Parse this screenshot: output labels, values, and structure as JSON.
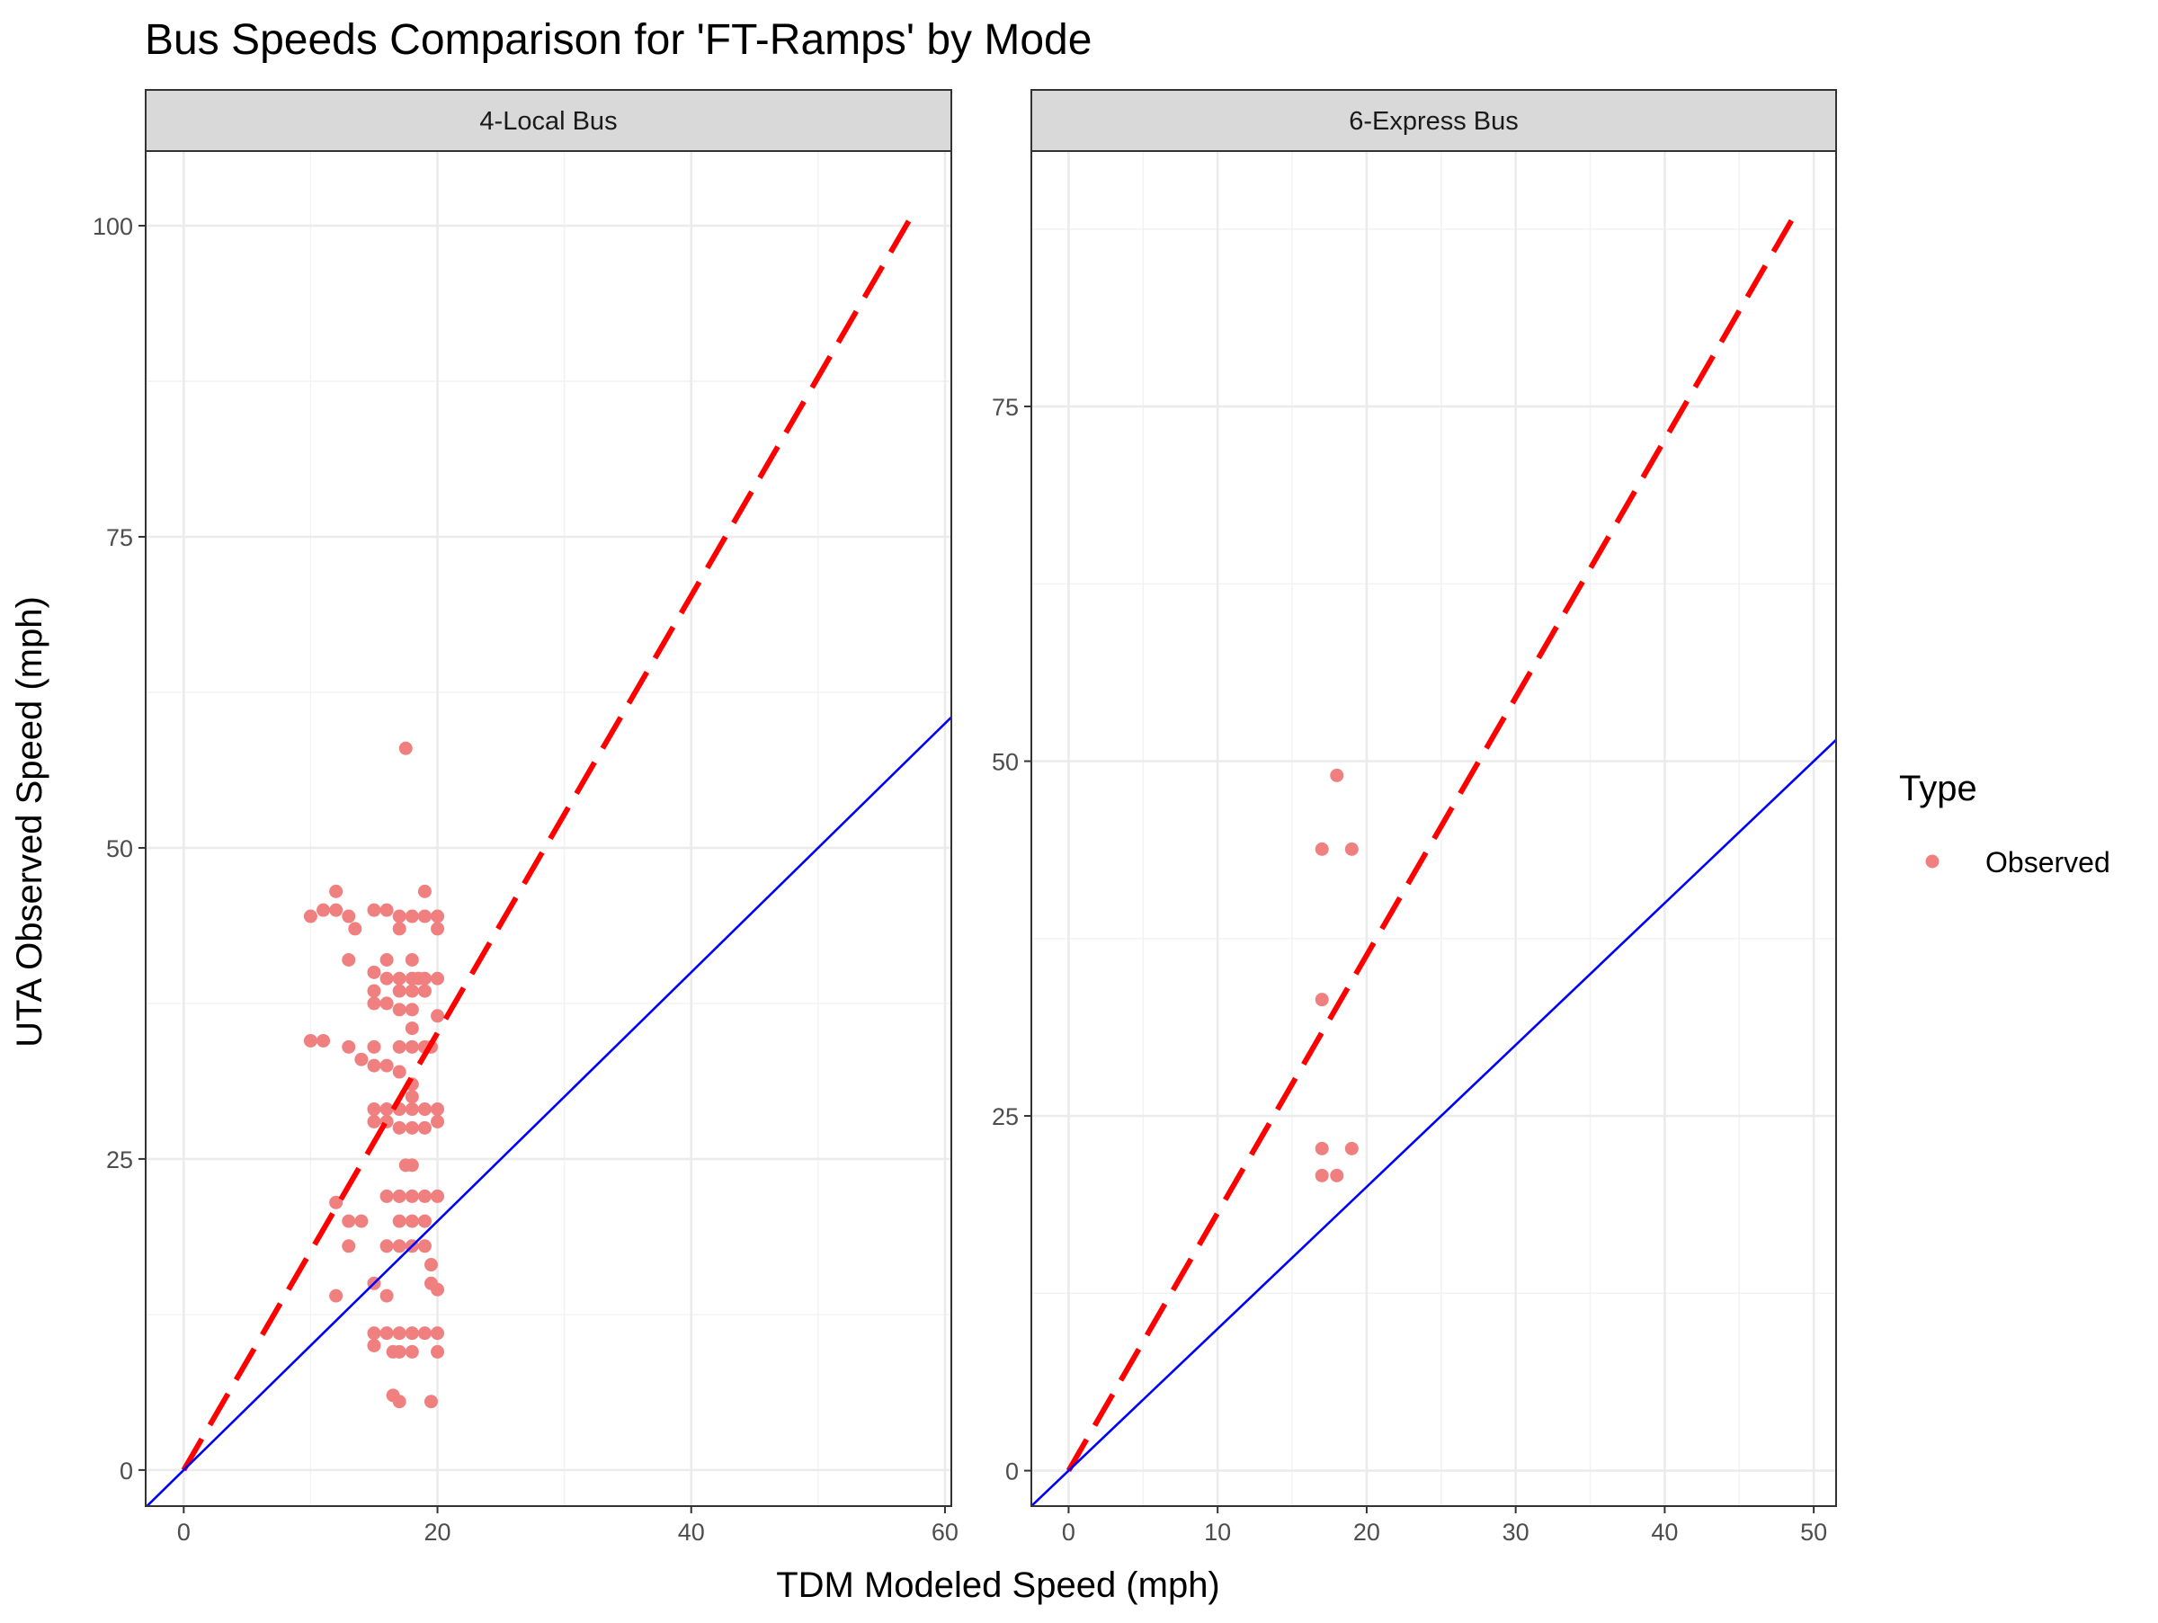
{
  "title": "Bus Speeds Comparison for 'FT-Ramps' by Mode",
  "xlabel": "TDM Modeled Speed (mph)",
  "ylabel": "UTA Observed Speed (mph)",
  "legend": {
    "title": "Type",
    "label": "Observed",
    "color": "#f08080",
    "position": "right"
  },
  "colors": {
    "points": "#f08080",
    "dashed_line": "#ff0000",
    "solid_line": "#0000ff"
  },
  "chart_data": [
    {
      "type": "scatter",
      "panel": "4-Local Bus",
      "xlim": [
        -3,
        60.5
      ],
      "ylim": [
        -2.9,
        106
      ],
      "x_ticks": [
        0,
        20,
        40,
        60
      ],
      "y_ticks": [
        0,
        25,
        50,
        75,
        100
      ],
      "grid": true,
      "reference_lines": [
        {
          "style": "dashed",
          "color": "#ff0000",
          "points": [
            [
              0,
              0
            ],
            [
              57.5,
              101
            ]
          ]
        },
        {
          "style": "solid",
          "color": "#0000ff",
          "slope": 1,
          "intercept": 0
        }
      ],
      "series": [
        {
          "name": "Observed",
          "points": [
            [
              17.5,
              58
            ],
            [
              19,
              46.5
            ],
            [
              12,
              46.5
            ],
            [
              10,
              44.5
            ],
            [
              11,
              45
            ],
            [
              12,
              45
            ],
            [
              13,
              44.5
            ],
            [
              15,
              45
            ],
            [
              16,
              45
            ],
            [
              17,
              44.5
            ],
            [
              18,
              44.5
            ],
            [
              19,
              44.5
            ],
            [
              20,
              44.5
            ],
            [
              13.5,
              43.5
            ],
            [
              17,
              43.5
            ],
            [
              20,
              43.5
            ],
            [
              13,
              41
            ],
            [
              16,
              41
            ],
            [
              18,
              41
            ],
            [
              15,
              40
            ],
            [
              16,
              39.5
            ],
            [
              17,
              39.5
            ],
            [
              18,
              39.5
            ],
            [
              18.5,
              39.5
            ],
            [
              19,
              39.5
            ],
            [
              20,
              39.5
            ],
            [
              15,
              38.5
            ],
            [
              17,
              38.5
            ],
            [
              18,
              38.5
            ],
            [
              19,
              38.5
            ],
            [
              15,
              37.5
            ],
            [
              16,
              37.5
            ],
            [
              17,
              37
            ],
            [
              18,
              37
            ],
            [
              20,
              36.5
            ],
            [
              18,
              35.5
            ],
            [
              10,
              34.5
            ],
            [
              11,
              34.5
            ],
            [
              13,
              34
            ],
            [
              15,
              34
            ],
            [
              17,
              34
            ],
            [
              18,
              34
            ],
            [
              19,
              34
            ],
            [
              19.5,
              34
            ],
            [
              14,
              33
            ],
            [
              15,
              32.5
            ],
            [
              16,
              32.5
            ],
            [
              17,
              32
            ],
            [
              18,
              31
            ],
            [
              18,
              30
            ],
            [
              15,
              29
            ],
            [
              16,
              29
            ],
            [
              17,
              29
            ],
            [
              18,
              29
            ],
            [
              19,
              29
            ],
            [
              20,
              29
            ],
            [
              15,
              28
            ],
            [
              16,
              28
            ],
            [
              17,
              27.5
            ],
            [
              18,
              27.5
            ],
            [
              19,
              27.5
            ],
            [
              20,
              28
            ],
            [
              18,
              24.5
            ],
            [
              17.5,
              24.5
            ],
            [
              17,
              22
            ],
            [
              18,
              22
            ],
            [
              19,
              22
            ],
            [
              20,
              22
            ],
            [
              16,
              22
            ],
            [
              12,
              21.5
            ],
            [
              13,
              20
            ],
            [
              14,
              20
            ],
            [
              17,
              20
            ],
            [
              18,
              20
            ],
            [
              19,
              20
            ],
            [
              13,
              18
            ],
            [
              16,
              18
            ],
            [
              17,
              18
            ],
            [
              18,
              18
            ],
            [
              19,
              18
            ],
            [
              19.5,
              16.5
            ],
            [
              15,
              15
            ],
            [
              19.5,
              15
            ],
            [
              20,
              14.5
            ],
            [
              12,
              14
            ],
            [
              16,
              14
            ],
            [
              15,
              11
            ],
            [
              16,
              11
            ],
            [
              17,
              11
            ],
            [
              18,
              11
            ],
            [
              19,
              11
            ],
            [
              20,
              11
            ],
            [
              15,
              10
            ],
            [
              16.5,
              9.5
            ],
            [
              17,
              9.5
            ],
            [
              18,
              9.5
            ],
            [
              20,
              9.5
            ],
            [
              16.5,
              6
            ],
            [
              17,
              5.5
            ],
            [
              19.5,
              5.5
            ]
          ]
        }
      ]
    },
    {
      "type": "scatter",
      "panel": "6-Express Bus",
      "xlim": [
        -2.5,
        51.5
      ],
      "ylim": [
        -2.5,
        93
      ],
      "x_ticks": [
        0,
        10,
        20,
        30,
        40,
        50
      ],
      "y_ticks": [
        0,
        25,
        50,
        75
      ],
      "grid": true,
      "reference_lines": [
        {
          "style": "dashed",
          "color": "#ff0000",
          "points": [
            [
              0,
              0
            ],
            [
              49,
              89
            ]
          ]
        },
        {
          "style": "solid",
          "color": "#0000ff",
          "slope": 1,
          "intercept": 0
        }
      ],
      "series": [
        {
          "name": "Observed",
          "points": [
            [
              18,
              49
            ],
            [
              17,
              43.8
            ],
            [
              19,
              43.8
            ],
            [
              17,
              33.2
            ],
            [
              17,
              22.7
            ],
            [
              19,
              22.7
            ],
            [
              17,
              20.8
            ],
            [
              18,
              20.8
            ]
          ]
        }
      ]
    }
  ]
}
